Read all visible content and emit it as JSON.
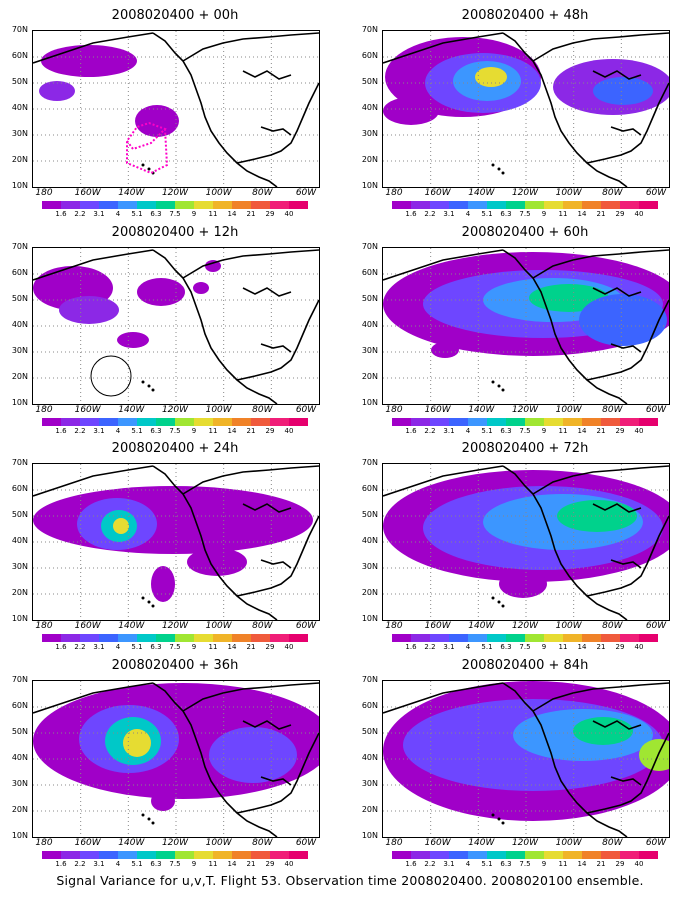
{
  "caption": "Signal Variance for u,v,T. Flight 53. Observation time 2008020400. 2008020100 ensemble.",
  "lat_labels": [
    "70N",
    "60N",
    "50N",
    "40N",
    "30N",
    "20N",
    "10N"
  ],
  "lon_labels": [
    "180",
    "160W",
    "140W",
    "120W",
    "100W",
    "80W",
    "60W"
  ],
  "colorbar": {
    "levels": [
      "1.6",
      "2.2",
      "3.1",
      "4",
      "5.1",
      "6.3",
      "7.5",
      "9",
      "11",
      "14",
      "21",
      "29",
      "40"
    ],
    "colors": [
      "#a000c8",
      "#8c28e6",
      "#6e46ff",
      "#3c64ff",
      "#3c96ff",
      "#00c8c8",
      "#00d28c",
      "#a0e632",
      "#e6dc32",
      "#f0b428",
      "#f08228",
      "#f05a3c",
      "#f01e78",
      "#e6006e"
    ]
  },
  "panels": [
    {
      "title": "2008020400 + 00h"
    },
    {
      "title": "2008020400 + 48h"
    },
    {
      "title": "2008020400 + 12h"
    },
    {
      "title": "2008020400 + 60h"
    },
    {
      "title": "2008020400 + 24h"
    },
    {
      "title": "2008020400 + 72h"
    },
    {
      "title": "2008020400 + 36h"
    },
    {
      "title": "2008020400 + 84h"
    }
  ]
}
